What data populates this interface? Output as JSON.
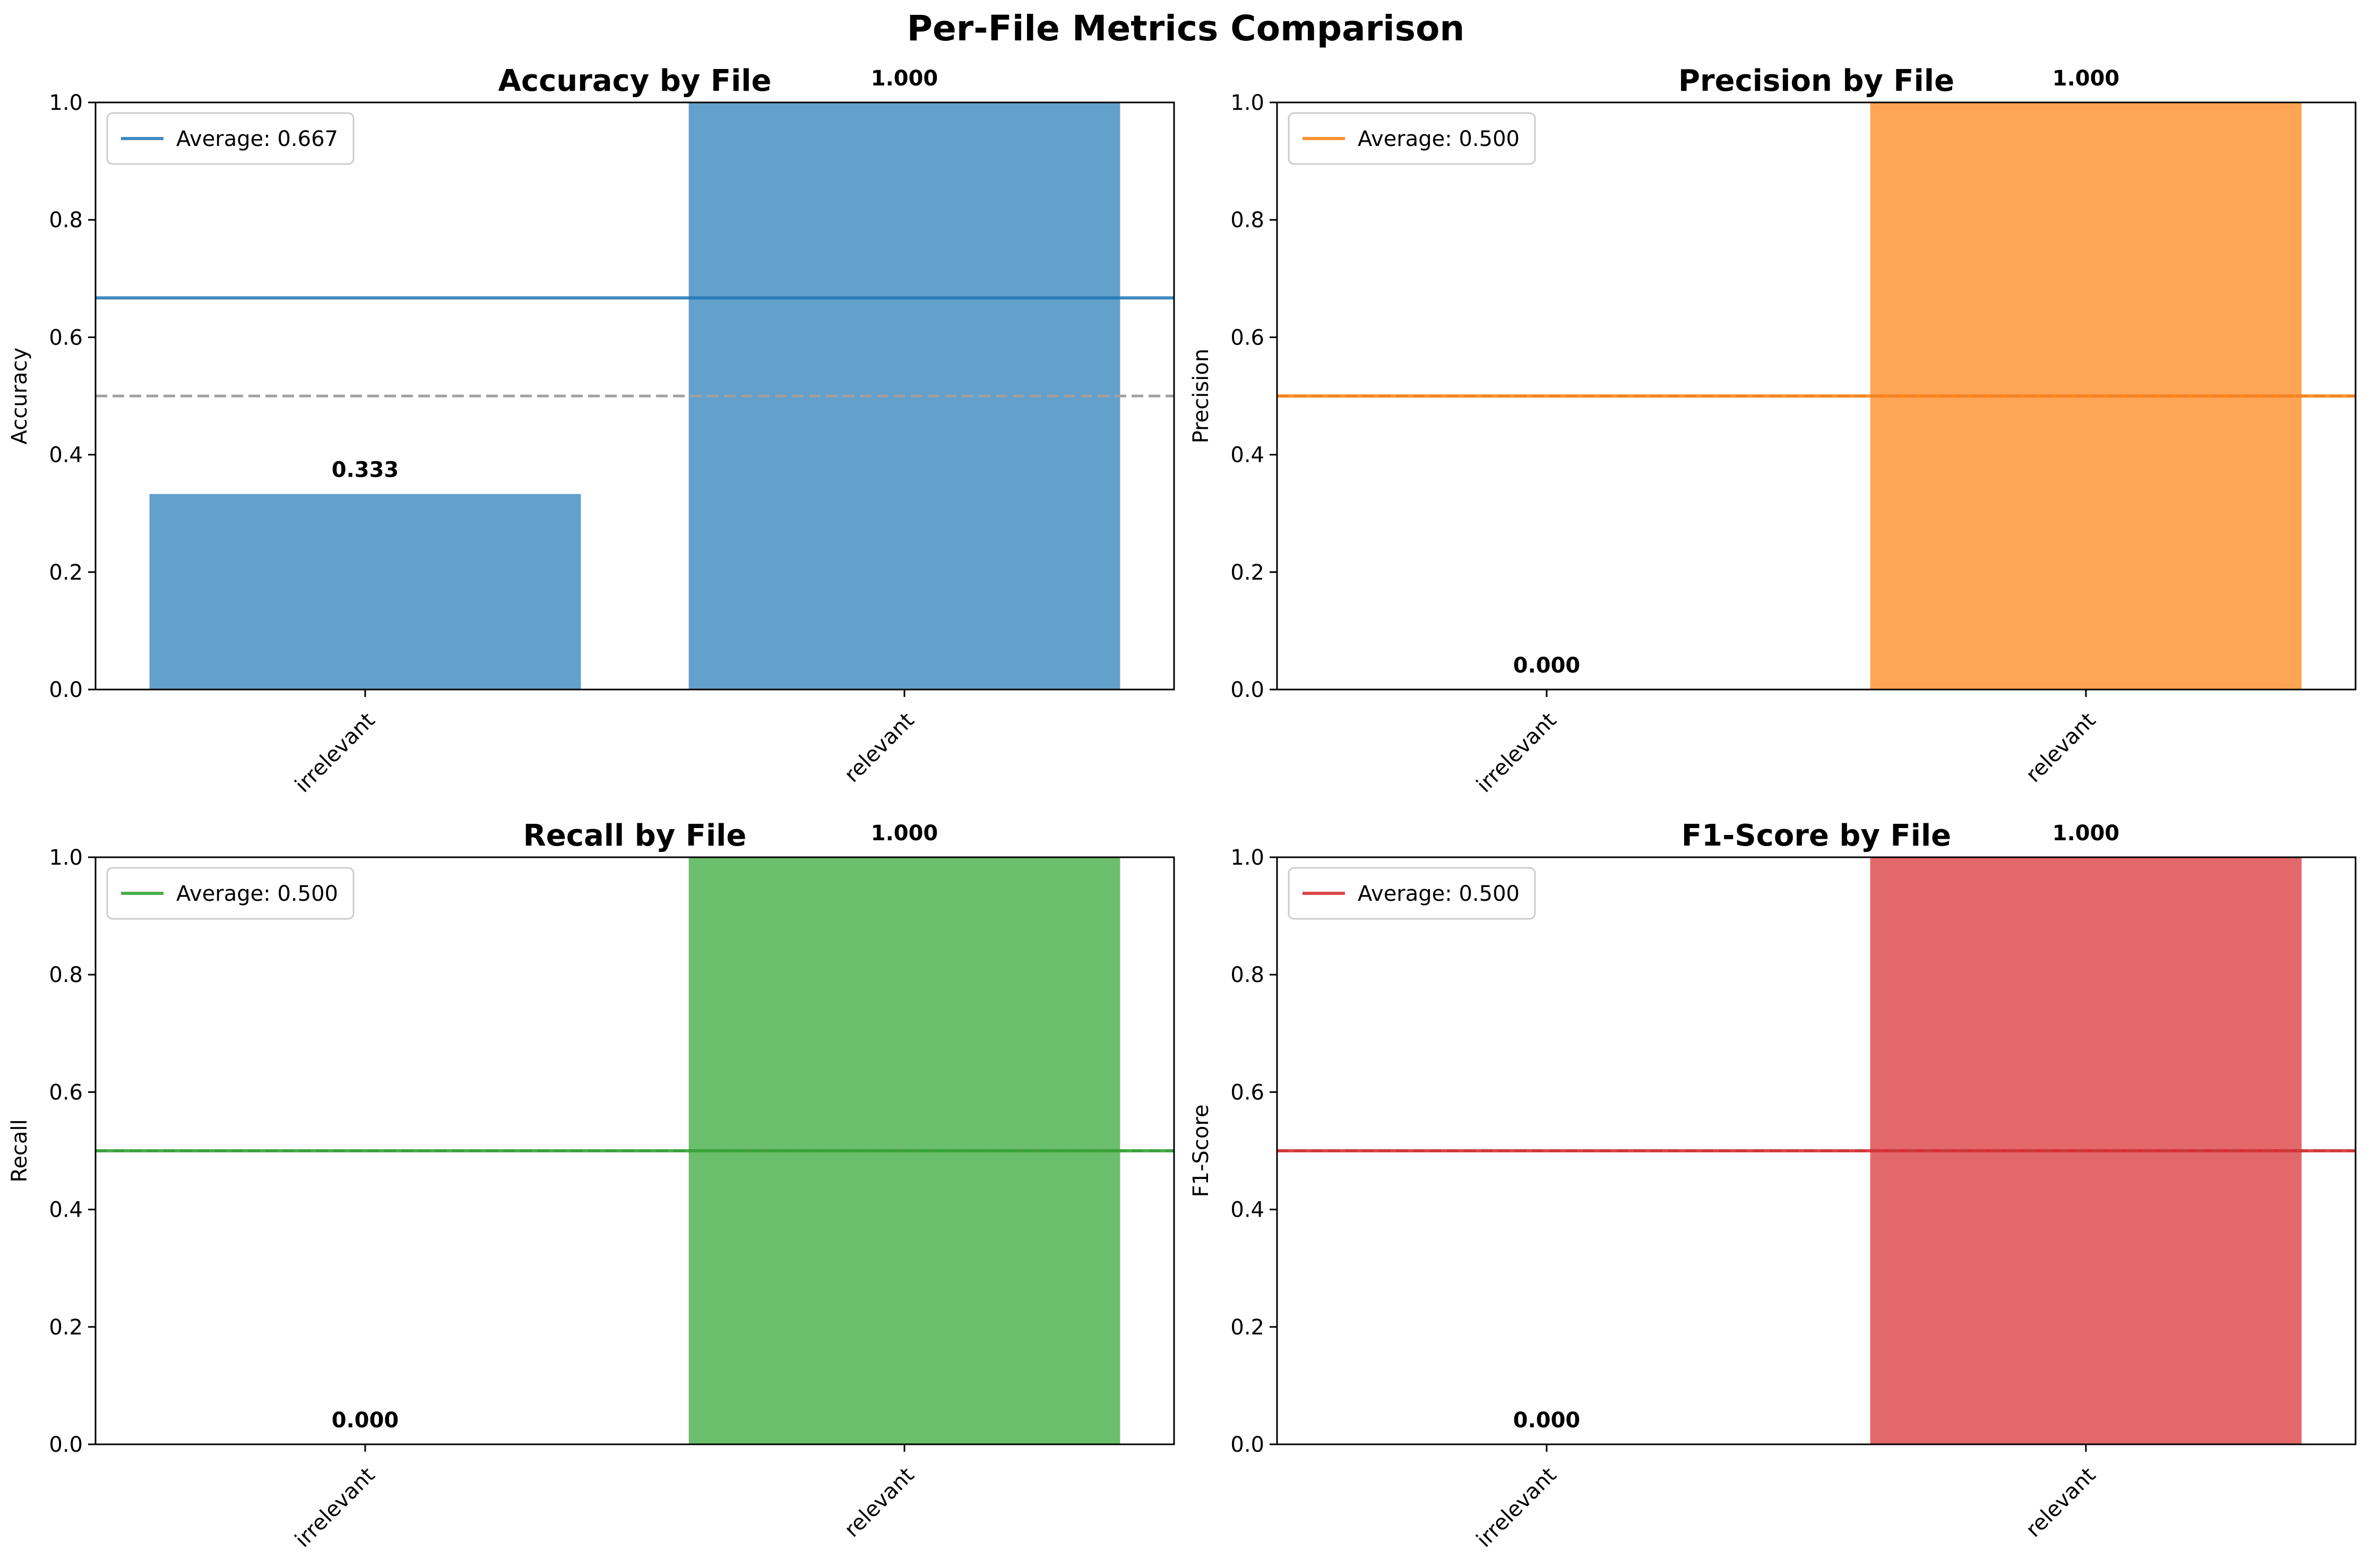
{
  "figure": {
    "title": "Per-File Metrics Comparison"
  },
  "chart_data": [
    {
      "type": "bar",
      "title": "Accuracy by File",
      "xlabel": "",
      "ylabel": "Accuracy",
      "categories": [
        "irrelevant",
        "relevant"
      ],
      "values": [
        0.333,
        1.0
      ],
      "value_labels": [
        "0.333",
        "1.000"
      ],
      "ylim": [
        0,
        1.0
      ],
      "yticks": [
        "0.0",
        "0.2",
        "0.4",
        "0.6",
        "0.8",
        "1.0"
      ],
      "average": 0.667,
      "legend_label": "Average: 0.667",
      "reference_line": 0.5,
      "bar_color": "#63a0cb",
      "line_color": "#1f77b4",
      "legend_position": "top-left"
    },
    {
      "type": "bar",
      "title": "Precision by File",
      "xlabel": "",
      "ylabel": "Precision",
      "categories": [
        "irrelevant",
        "relevant"
      ],
      "values": [
        0.0,
        1.0
      ],
      "value_labels": [
        "0.000",
        "1.000"
      ],
      "ylim": [
        0,
        1.0
      ],
      "yticks": [
        "0.0",
        "0.2",
        "0.4",
        "0.6",
        "0.8",
        "1.0"
      ],
      "average": 0.5,
      "legend_label": "Average: 0.500",
      "reference_line": 0.5,
      "bar_color": "#ffa555",
      "line_color": "#ff7f0e",
      "legend_position": "top-left"
    },
    {
      "type": "bar",
      "title": "Recall by File",
      "xlabel": "",
      "ylabel": "Recall",
      "categories": [
        "irrelevant",
        "relevant"
      ],
      "values": [
        0.0,
        1.0
      ],
      "value_labels": [
        "0.000",
        "1.000"
      ],
      "ylim": [
        0,
        1.0
      ],
      "yticks": [
        "0.0",
        "0.2",
        "0.4",
        "0.6",
        "0.8",
        "1.0"
      ],
      "average": 0.5,
      "legend_label": "Average: 0.500",
      "reference_line": 0.5,
      "bar_color": "#6bbe6b",
      "line_color": "#2ca02c",
      "legend_position": "top-left"
    },
    {
      "type": "bar",
      "title": "F1-Score by File",
      "xlabel": "",
      "ylabel": "F1-Score",
      "categories": [
        "irrelevant",
        "relevant"
      ],
      "values": [
        0.0,
        1.0
      ],
      "value_labels": [
        "0.000",
        "1.000"
      ],
      "ylim": [
        0,
        1.0
      ],
      "yticks": [
        "0.0",
        "0.2",
        "0.4",
        "0.6",
        "0.8",
        "1.0"
      ],
      "average": 0.5,
      "legend_label": "Average: 0.500",
      "reference_line": 0.5,
      "bar_color": "#e2686a",
      "line_color": "#d62728",
      "legend_position": "top-left"
    }
  ]
}
